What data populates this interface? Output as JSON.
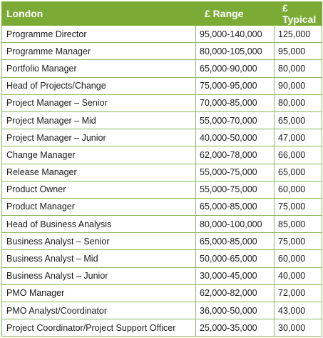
{
  "table": {
    "headers": {
      "location": "London",
      "range": "£ Range",
      "typical": "£ Typical"
    },
    "rows": [
      {
        "role": "Programme Director",
        "range": "95,000-140,000",
        "typical": "125,000"
      },
      {
        "role": "Programme Manager",
        "range": "80,000-105,000",
        "typical": "95,000"
      },
      {
        "role": "Portfolio Manager",
        "range": "65,000-90,000",
        "typical": "80,000"
      },
      {
        "role": "Head of Projects/Change",
        "range": "75,000-95,000",
        "typical": "90,000"
      },
      {
        "role": "Project Manager – Senior",
        "range": "70,000-85,000",
        "typical": "80,000"
      },
      {
        "role": "Project Manager – Mid",
        "range": "55,000-70,000",
        "typical": "65,000"
      },
      {
        "role": "Project Manager – Junior",
        "range": "40,000-50,000",
        "typical": "47,000"
      },
      {
        "role": "Change Manager",
        "range": "62,000-78,000",
        "typical": "66,000"
      },
      {
        "role": "Release Manager",
        "range": "55,000-75,000",
        "typical": "65,000"
      },
      {
        "role": "Product Owner",
        "range": "55,000-75,000",
        "typical": "60,000"
      },
      {
        "role": "Product Manager",
        "range": "65,000-85,000",
        "typical": "75,000"
      },
      {
        "role": "Head of Business Analysis",
        "range": "80,000-100,000",
        "typical": "85,000"
      },
      {
        "role": "Business Analyst – Senior",
        "range": "65,000-85,000",
        "typical": "75,000"
      },
      {
        "role": "Business Analyst – Mid",
        "range": "50,000-65,000",
        "typical": "60,000"
      },
      {
        "role": "Business Analyst – Junior",
        "range": "30,000-45,000",
        "typical": "40,000"
      },
      {
        "role": "PMO Manager",
        "range": "62,000-82,000",
        "typical": "72,000"
      },
      {
        "role": "PMO Analyst/Coordinator",
        "range": "36,000-50,000",
        "typical": "43,000"
      },
      {
        "role": "Project Coordinator/Project Support Officer",
        "range": "25,000-35,000",
        "typical": "30,000"
      }
    ]
  }
}
